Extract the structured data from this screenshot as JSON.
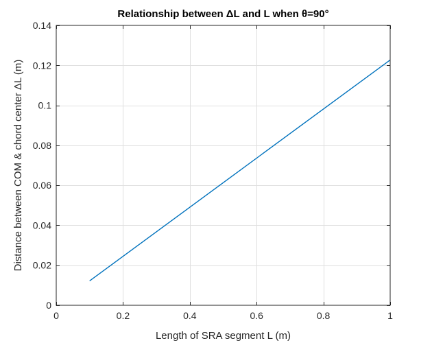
{
  "chart_data": {
    "type": "line",
    "title": "Relationship between ΔL and L when θ=90°",
    "xlabel": "Length of SRA segment L (m)",
    "ylabel": "Distance between COM & chord center ΔL (m)",
    "xlim": [
      0,
      1
    ],
    "ylim": [
      0,
      0.14
    ],
    "xticks": [
      0,
      0.2,
      0.4,
      0.6,
      0.8,
      1
    ],
    "xtick_labels": [
      "0",
      "0.2",
      "0.4",
      "0.6",
      "0.8",
      "1"
    ],
    "yticks": [
      0,
      0.02,
      0.04,
      0.06,
      0.08,
      0.1,
      0.12,
      0.14
    ],
    "ytick_labels": [
      "0",
      "0.02",
      "0.04",
      "0.06",
      "0.08",
      "0.1",
      "0.12",
      "0.14"
    ],
    "grid": true,
    "series": [
      {
        "color": "#0072BD",
        "x": [
          0.1,
          1.0
        ],
        "y": [
          0.0122,
          0.1227
        ]
      }
    ]
  },
  "colors": {
    "line": "#0072BD",
    "grid": "#dfdfdf",
    "axes": "#262626"
  }
}
